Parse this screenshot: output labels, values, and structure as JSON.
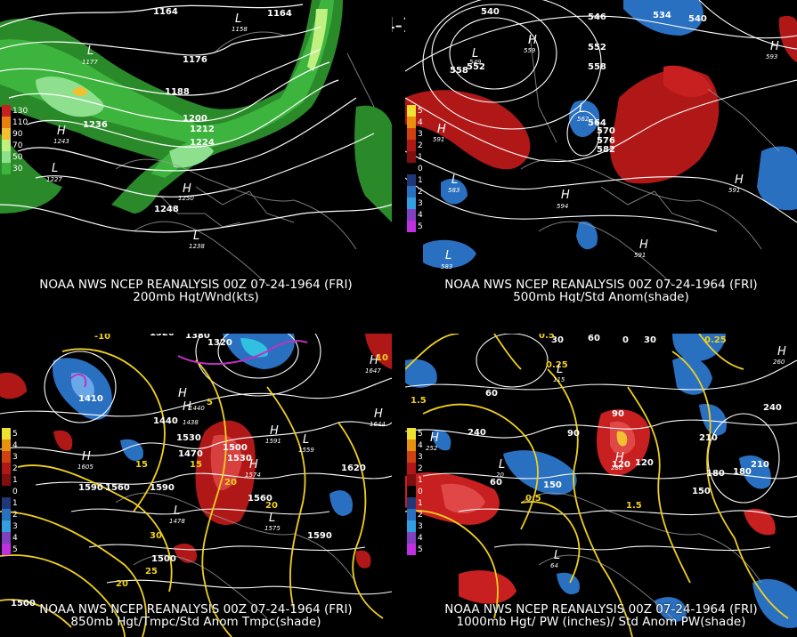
{
  "header": {
    "title": "00Z 07-24-1964 (FRI)"
  },
  "panels": [
    {
      "id": "tl",
      "caption1": "NOAA NWS NCEP REANALYSIS 00Z 07-24-1964 (FRI)",
      "caption2": "200mb Hgt/Wnd(kts)",
      "legend": [
        "130",
        "110",
        "90",
        "70",
        "50",
        "30"
      ],
      "contour_labels": [
        "1164",
        "1164",
        "1176",
        "1188",
        "1200",
        "1212",
        "1224",
        "1236",
        "1248"
      ],
      "centers": [
        {
          "t": "L",
          "v": "1177"
        },
        {
          "t": "L",
          "v": "1158"
        },
        {
          "t": "H",
          "v": "1243"
        },
        {
          "t": "L",
          "v": "1227"
        },
        {
          "t": "H",
          "v": "1250"
        },
        {
          "t": "L",
          "v": "1238"
        }
      ]
    },
    {
      "id": "tr",
      "caption1": "NOAA NWS NCEP REANALYSIS 00Z 07-24-1964 (FRI)",
      "caption2": "500mb Hgt/Std Anom(shade)",
      "legend": [
        "5",
        "4",
        "3",
        "2",
        "1",
        "0",
        "1",
        "2",
        "3",
        "4",
        "5"
      ],
      "contour_labels": [
        "540",
        "546",
        "534",
        "540",
        "552",
        "558",
        "558",
        "552",
        "564",
        "570",
        "576",
        "582"
      ],
      "centers": [
        {
          "t": "H",
          "v": "559"
        },
        {
          "t": "L",
          "v": "549"
        },
        {
          "t": "H",
          "v": "591"
        },
        {
          "t": "L",
          "v": "583"
        },
        {
          "t": "H",
          "v": "594"
        },
        {
          "t": "L",
          "v": "562"
        },
        {
          "t": "H",
          "v": "591"
        },
        {
          "t": "H",
          "v": "591"
        },
        {
          "t": "L",
          "v": "583"
        },
        {
          "t": "H",
          "v": "593"
        }
      ]
    },
    {
      "id": "bl",
      "caption1": "NOAA NWS NCEP REANALYSIS 00Z 07-24-1964 (FRI)",
      "caption2": "850mb Hgt/Tmpc/Std Anom Tmpc(shade)",
      "legend": [
        "5",
        "4",
        "3",
        "2",
        "1",
        "0",
        "1",
        "2",
        "3",
        "4",
        "5"
      ],
      "contour_labels": [
        "1320",
        "1380",
        "1290",
        "1320",
        "1410",
        "1440",
        "1470",
        "1500",
        "1530",
        "1560",
        "1590",
        "1620",
        "1590",
        "1560",
        "1590",
        "1500",
        "1500",
        "1530"
      ],
      "temp_labels": [
        "-10",
        "10",
        "5",
        "15",
        "15",
        "20",
        "25",
        "20",
        "30",
        "20"
      ],
      "centers": [
        {
          "t": "H",
          "v": "1647"
        },
        {
          "t": "H",
          "v": "1644"
        },
        {
          "t": "H",
          "v": "1605"
        },
        {
          "t": "L",
          "v": "1478"
        },
        {
          "t": "H",
          "v": "1574"
        },
        {
          "t": "L",
          "v": "1575"
        },
        {
          "t": "L",
          "v": "1559"
        },
        {
          "t": "H",
          "v": "1591"
        },
        {
          "t": "H",
          "v": "1438"
        },
        {
          "t": "H",
          "v": "1440"
        }
      ]
    },
    {
      "id": "br",
      "caption1": "NOAA NWS NCEP REANALYSIS 00Z 07-24-1964 (FRI)",
      "caption2": "1000mb Hgt/ PW (inches)/ Std Anom PW(shade)",
      "legend": [
        "5",
        "4",
        "3",
        "2",
        "1",
        "0",
        "1",
        "2",
        "3",
        "4",
        "5"
      ],
      "contour_labels": [
        "60",
        "30",
        "0",
        "30",
        "60",
        "90",
        "120",
        "150",
        "180",
        "210",
        "240",
        "210",
        "180",
        "150",
        "120",
        "90",
        "60",
        "240",
        "0.5",
        "0.25",
        "1.5",
        "1.5",
        "0.5",
        "0.25"
      ],
      "centers": [
        {
          "t": "H",
          "v": "260"
        },
        {
          "t": "H",
          "v": "252"
        },
        {
          "t": "L",
          "v": "64"
        },
        {
          "t": "L",
          "v": "115"
        },
        {
          "t": "L",
          "v": "20"
        },
        {
          "t": "H",
          "v": "280"
        }
      ]
    }
  ],
  "colors": {
    "land_line": "#9a9a9a",
    "contour": "#ffffff",
    "yellow": "#f0d020",
    "red": "#c82020",
    "blue": "#2a70c0",
    "green": "#3db43d",
    "magenta": "#c030c0"
  }
}
